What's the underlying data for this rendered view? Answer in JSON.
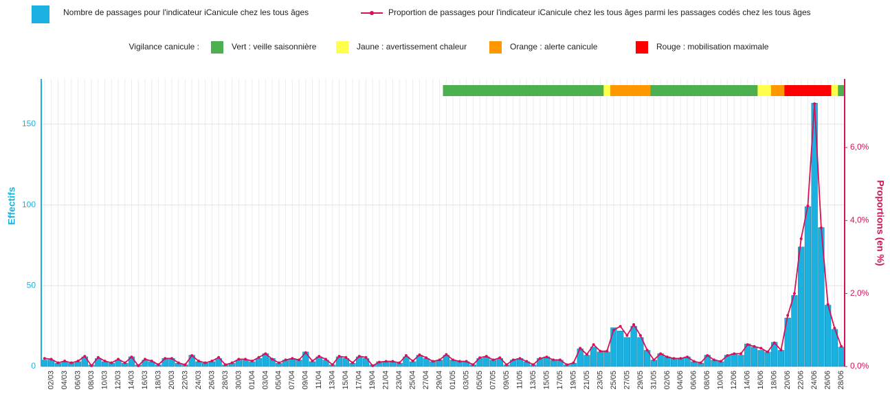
{
  "chart_data": {
    "type": "bar",
    "categories": [
      null,
      "02/03",
      null,
      "04/03",
      null,
      "06/03",
      null,
      "08/03",
      null,
      "10/03",
      null,
      "12/03",
      null,
      "14/03",
      null,
      "16/03",
      null,
      "18/03",
      null,
      "20/03",
      null,
      "22/03",
      null,
      "24/03",
      null,
      "26/03",
      null,
      "28/03",
      null,
      "30/03",
      null,
      "01/04",
      null,
      "03/04",
      null,
      "05/04",
      null,
      "07/04",
      null,
      "09/04",
      null,
      "11/04",
      null,
      "13/04",
      null,
      "15/04",
      null,
      "17/04",
      null,
      "19/04",
      null,
      "21/04",
      null,
      "23/04",
      null,
      "25/04",
      null,
      "27/04",
      null,
      "29/04",
      null,
      "01/05",
      null,
      "03/05",
      null,
      "05/05",
      null,
      "07/05",
      null,
      "09/05",
      null,
      "11/05",
      null,
      "13/05",
      null,
      "15/05",
      null,
      "17/05",
      null,
      "19/05",
      null,
      "21/05",
      null,
      "23/05",
      null,
      "25/05",
      null,
      "27/05",
      null,
      "29/05",
      null,
      "31/05",
      null,
      "02/06",
      null,
      "04/06",
      null,
      "06/06",
      null,
      "08/06",
      null,
      "10/06",
      null,
      "12/06",
      null,
      "14/06",
      null,
      "16/06",
      null,
      "18/06",
      null,
      "20/06",
      null,
      "22/06",
      null,
      "24/06",
      null,
      "26/06",
      null,
      "28/06"
    ],
    "series": [
      {
        "name": "Nombre de passages pour l'indicateur iCanicule chez les tous âges",
        "color": "#1ab0e0",
        "values": [
          4,
          4,
          2,
          3,
          2,
          3,
          6,
          1,
          5,
          3,
          2,
          4,
          2,
          6,
          1,
          4,
          3,
          1,
          5,
          5,
          2,
          1,
          7,
          3,
          2,
          3,
          5,
          1,
          2,
          4,
          4,
          3,
          5,
          8,
          5,
          2,
          4,
          5,
          4,
          9,
          3,
          6,
          4,
          1,
          6,
          5,
          2,
          6,
          5,
          1,
          3,
          3,
          3,
          2,
          6,
          3,
          7,
          5,
          3,
          4,
          7,
          4,
          3,
          3,
          1,
          5,
          6,
          4,
          5,
          1,
          4,
          5,
          3,
          1,
          5,
          6,
          4,
          4,
          1,
          2,
          11,
          7,
          12,
          9,
          9,
          24,
          22,
          18,
          25,
          18,
          10,
          4,
          8,
          6,
          5,
          5,
          6,
          3,
          2,
          7,
          4,
          3,
          7,
          8,
          7,
          14,
          12,
          10,
          9,
          15,
          10,
          30,
          44,
          74,
          99,
          163,
          86,
          38,
          23,
          12
        ]
      },
      {
        "name": "Proportion de passages pour l'indicateur iCanicule chez les tous âges parmi les passages codés chez les tous âges",
        "color": "#d6105a",
        "type": "line",
        "axis": "y2",
        "values": [
          0.22,
          0.2,
          0.1,
          0.15,
          0.1,
          0.15,
          0.28,
          0.02,
          0.25,
          0.15,
          0.1,
          0.2,
          0.1,
          0.26,
          0.02,
          0.2,
          0.15,
          0.05,
          0.22,
          0.22,
          0.1,
          0.05,
          0.3,
          0.15,
          0.1,
          0.15,
          0.25,
          0.05,
          0.1,
          0.2,
          0.2,
          0.15,
          0.25,
          0.35,
          0.2,
          0.1,
          0.18,
          0.22,
          0.18,
          0.38,
          0.15,
          0.28,
          0.2,
          0.05,
          0.28,
          0.25,
          0.1,
          0.28,
          0.25,
          0.02,
          0.12,
          0.14,
          0.14,
          0.1,
          0.3,
          0.15,
          0.32,
          0.24,
          0.14,
          0.18,
          0.33,
          0.18,
          0.14,
          0.14,
          0.05,
          0.24,
          0.28,
          0.18,
          0.24,
          0.05,
          0.18,
          0.22,
          0.14,
          0.05,
          0.22,
          0.26,
          0.18,
          0.18,
          0.05,
          0.1,
          0.5,
          0.33,
          0.6,
          0.42,
          0.42,
          1.0,
          1.1,
          0.85,
          1.15,
          0.85,
          0.45,
          0.18,
          0.35,
          0.26,
          0.22,
          0.22,
          0.26,
          0.14,
          0.1,
          0.3,
          0.18,
          0.14,
          0.3,
          0.35,
          0.35,
          0.6,
          0.55,
          0.5,
          0.4,
          0.65,
          0.45,
          1.4,
          2.0,
          3.5,
          4.4,
          7.2,
          3.8,
          1.7,
          1.05,
          0.55
        ]
      }
    ],
    "ylim": [
      0,
      178
    ],
    "yticks": [
      0,
      50,
      100,
      150
    ],
    "y2lim": [
      0,
      7.88
    ],
    "y2ticks": [
      {
        "value": 0,
        "label": "0,0%"
      },
      {
        "value": 2,
        "label": "2,0%"
      },
      {
        "value": 4,
        "label": "4,0%"
      },
      {
        "value": 6,
        "label": "6,0%"
      }
    ],
    "ylabel": "Effectifs",
    "y2label": "Proportions (en %)",
    "grid": true,
    "vigilance_title": "Vigilance canicule :",
    "vigilance_levels": [
      {
        "label": "Vert : veille saisonnière",
        "color": "#4caf50"
      },
      {
        "label": "Jaune : avertissement chaleur",
        "color": "#ffff4d"
      },
      {
        "label": "Orange : alerte canicule",
        "color": "#ff9800"
      },
      {
        "label": "Rouge : mobilisation maximale",
        "color": "#ff0000"
      }
    ],
    "vigilance": [
      null,
      null,
      null,
      null,
      null,
      null,
      null,
      null,
      null,
      null,
      null,
      null,
      null,
      null,
      null,
      null,
      null,
      null,
      null,
      null,
      null,
      null,
      null,
      null,
      null,
      null,
      null,
      null,
      null,
      null,
      null,
      null,
      null,
      null,
      null,
      null,
      null,
      null,
      null,
      null,
      null,
      null,
      null,
      null,
      null,
      null,
      null,
      null,
      null,
      null,
      null,
      null,
      null,
      null,
      null,
      null,
      null,
      null,
      null,
      null,
      0,
      0,
      0,
      0,
      0,
      0,
      0,
      0,
      0,
      0,
      0,
      0,
      0,
      0,
      0,
      0,
      0,
      0,
      0,
      0,
      0,
      0,
      0,
      0,
      1,
      2,
      2,
      2,
      2,
      2,
      2,
      0,
      0,
      0,
      0,
      0,
      0,
      0,
      0,
      0,
      0,
      0,
      0,
      0,
      0,
      0,
      0,
      1,
      1,
      2,
      2,
      3,
      3,
      3,
      3,
      3,
      3,
      3,
      1,
      0
    ]
  }
}
